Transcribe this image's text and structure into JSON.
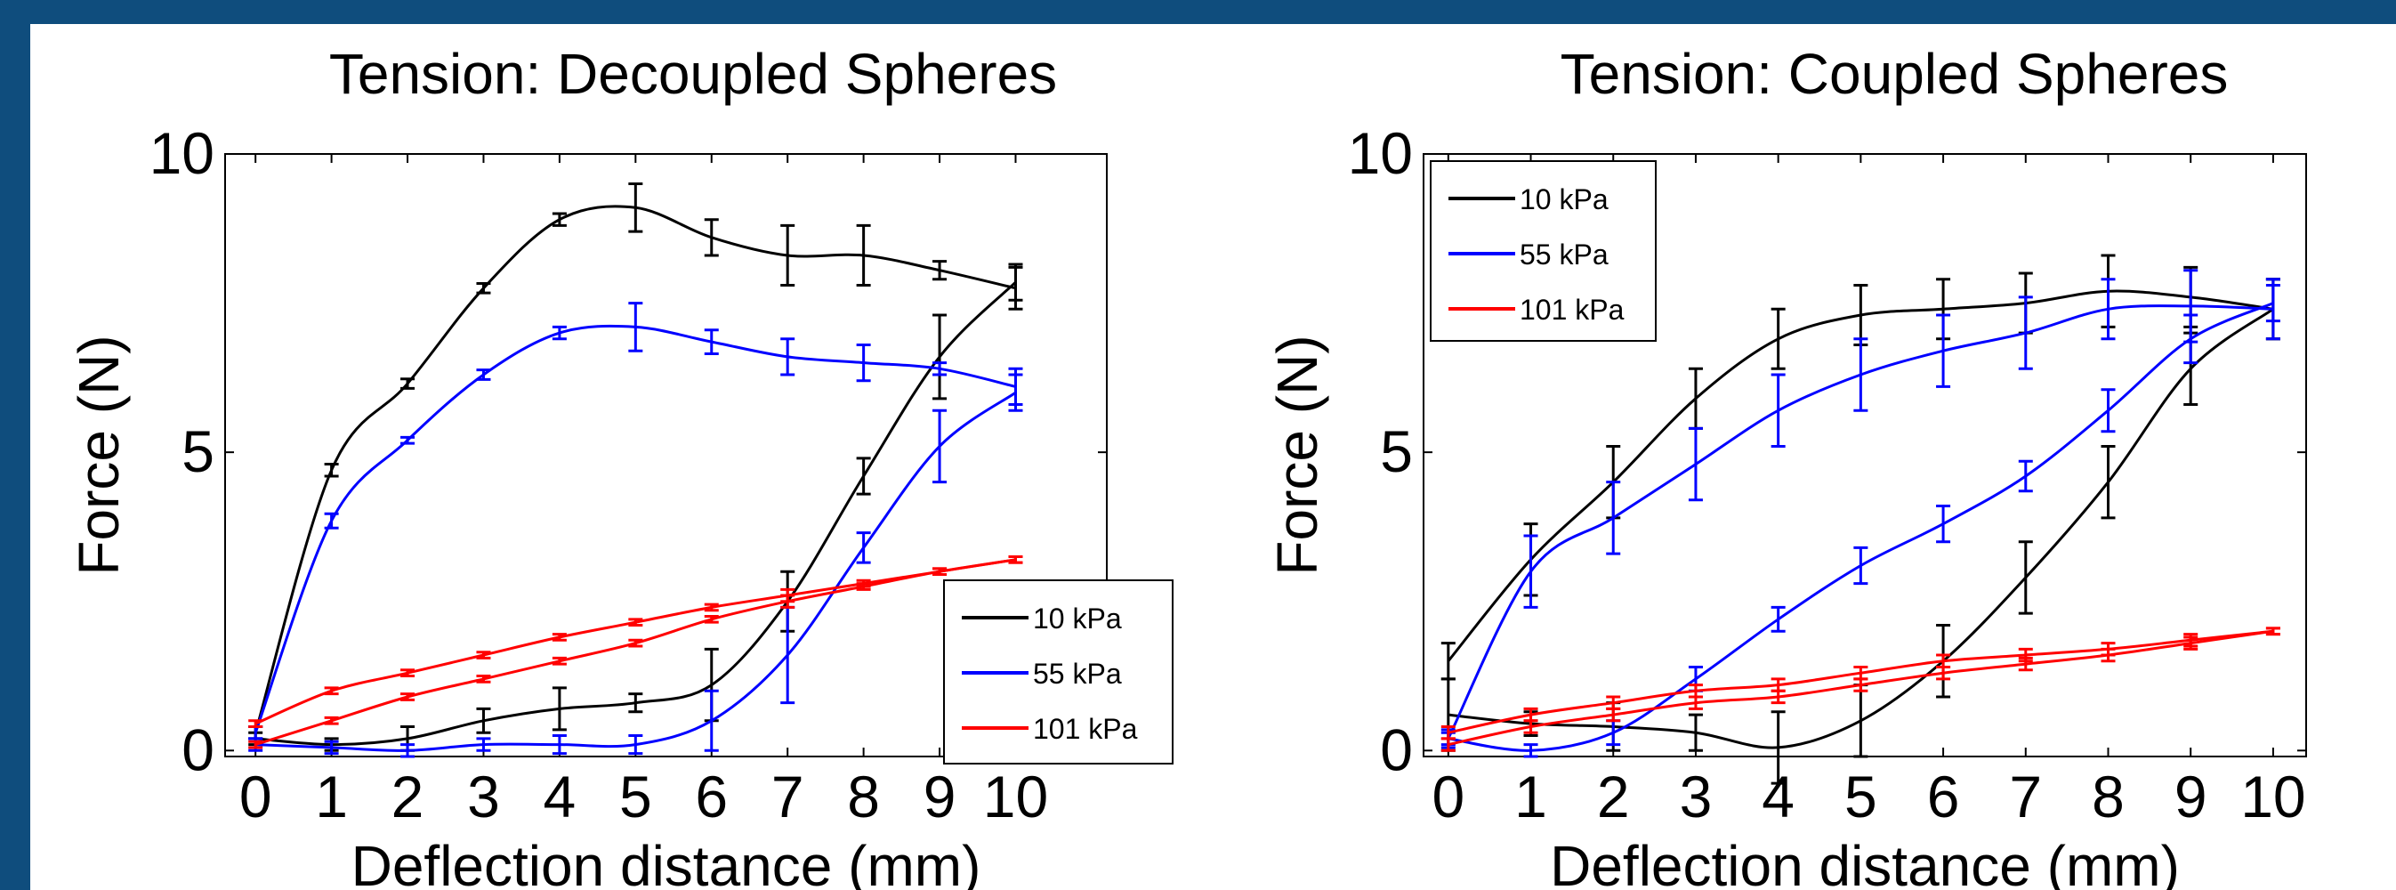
{
  "chart_data": [
    {
      "type": "line",
      "title": "Tension: Decoupled Spheres",
      "xlabel": "Deflection distance (mm)",
      "ylabel": "Force (N)",
      "xlim": [
        -0.4,
        11.2
      ],
      "ylim": [
        -0.1,
        10
      ],
      "xticks": [
        0,
        1,
        2,
        3,
        4,
        5,
        6,
        7,
        8,
        9,
        10
      ],
      "yticks": [
        0,
        5,
        10
      ],
      "legend_position": "bottom-right",
      "series": [
        {
          "name": "10 kPa",
          "color": "#000000",
          "loading": {
            "x": [
              0,
              1,
              2,
              3,
              4,
              5,
              6,
              7,
              8,
              9,
              10
            ],
            "y": [
              0.3,
              4.7,
              6.15,
              7.75,
              8.9,
              9.1,
              8.6,
              8.3,
              8.3,
              8.05,
              7.75
            ],
            "err": [
              0.1,
              0.1,
              0.08,
              0.08,
              0.1,
              0.4,
              0.3,
              0.5,
              0.5,
              0.15,
              0.35
            ]
          },
          "unloading": {
            "x": [
              0,
              1,
              2,
              3,
              4,
              5,
              6,
              7,
              8,
              9,
              10
            ],
            "y": [
              0.2,
              0.1,
              0.2,
              0.5,
              0.7,
              0.8,
              1.1,
              2.5,
              4.6,
              6.6,
              7.85
            ],
            "err": [
              0.1,
              0.1,
              0.2,
              0.2,
              0.35,
              0.15,
              0.6,
              0.5,
              0.3,
              0.7,
              0.3
            ]
          }
        },
        {
          "name": "55 kPa",
          "color": "#0000ff",
          "loading": {
            "x": [
              0,
              1,
              2,
              3,
              4,
              5,
              6,
              7,
              8,
              9,
              10
            ],
            "y": [
              0.3,
              3.85,
              5.2,
              6.3,
              7.0,
              7.1,
              6.85,
              6.6,
              6.5,
              6.4,
              6.1
            ],
            "err": [
              0.1,
              0.12,
              0.05,
              0.08,
              0.1,
              0.4,
              0.2,
              0.3,
              0.3,
              0.1,
              0.3
            ]
          },
          "unloading": {
            "x": [
              0,
              1,
              2,
              3,
              4,
              5,
              6,
              7,
              8,
              9,
              10
            ],
            "y": [
              0.1,
              0.05,
              0.0,
              0.1,
              0.1,
              0.1,
              0.5,
              1.6,
              3.4,
              5.1,
              6.0
            ],
            "err": [
              0.1,
              0.1,
              0.1,
              0.1,
              0.15,
              0.15,
              0.5,
              0.8,
              0.25,
              0.6,
              0.3
            ]
          }
        },
        {
          "name": "101 kPa",
          "color": "#ff0000",
          "loading": {
            "x": [
              0,
              1,
              2,
              3,
              4,
              5,
              6,
              7,
              8,
              9,
              10
            ],
            "y": [
              0.45,
              1.0,
              1.3,
              1.6,
              1.9,
              2.15,
              2.4,
              2.6,
              2.8,
              3.0,
              3.2
            ],
            "err": [
              0.05,
              0.05,
              0.05,
              0.05,
              0.05,
              0.05,
              0.05,
              0.1,
              0.05,
              0.05,
              0.05
            ]
          },
          "unloading": {
            "x": [
              0,
              1,
              2,
              3,
              4,
              5,
              6,
              7,
              8,
              9,
              10
            ],
            "y": [
              0.1,
              0.5,
              0.9,
              1.2,
              1.5,
              1.8,
              2.2,
              2.5,
              2.75,
              3.0,
              3.2
            ],
            "err": [
              0.05,
              0.05,
              0.05,
              0.05,
              0.05,
              0.05,
              0.05,
              0.1,
              0.05,
              0.05,
              0.05
            ]
          }
        }
      ]
    },
    {
      "type": "line",
      "title": "Tension: Coupled Spheres",
      "xlabel": "Deflection distance (mm)",
      "ylabel": "Force (N)",
      "xlim": [
        -0.3,
        10.4
      ],
      "ylim": [
        -0.1,
        10
      ],
      "xticks": [
        0,
        1,
        2,
        3,
        4,
        5,
        6,
        7,
        8,
        9,
        10
      ],
      "yticks": [
        0,
        5,
        10
      ],
      "legend_position": "top-left",
      "series": [
        {
          "name": "10 kPa",
          "color": "#000000",
          "loading": {
            "x": [
              0,
              1,
              2,
              3,
              4,
              5,
              6,
              7,
              8,
              9,
              10
            ],
            "y": [
              1.5,
              3.2,
              4.5,
              5.9,
              6.9,
              7.3,
              7.4,
              7.5,
              7.7,
              7.6,
              7.4
            ],
            "err": [
              0.3,
              0.6,
              0.6,
              0.5,
              0.5,
              0.5,
              0.5,
              0.5,
              0.6,
              0.5,
              0.5
            ]
          },
          "unloading": {
            "x": [
              0,
              1,
              2,
              3,
              4,
              5,
              6,
              7,
              8,
              9,
              10
            ],
            "y": [
              0.6,
              0.45,
              0.4,
              0.3,
              0.05,
              0.5,
              1.5,
              2.9,
              4.5,
              6.4,
              7.4
            ],
            "err": [
              0.6,
              0.2,
              0.4,
              0.3,
              0.6,
              0.6,
              0.6,
              0.6,
              0.6,
              0.6,
              0.5
            ]
          }
        },
        {
          "name": "55 kPa",
          "color": "#0000ff",
          "loading": {
            "x": [
              0,
              1,
              2,
              3,
              4,
              5,
              6,
              7,
              8,
              9,
              10
            ],
            "y": [
              0.2,
              3.0,
              3.9,
              4.8,
              5.7,
              6.3,
              6.7,
              7.0,
              7.4,
              7.45,
              7.4
            ],
            "err": [
              0.1,
              0.6,
              0.6,
              0.6,
              0.6,
              0.6,
              0.6,
              0.6,
              0.5,
              0.6,
              0.5
            ]
          },
          "unloading": {
            "x": [
              0,
              1,
              2,
              3,
              4,
              5,
              6,
              7,
              8,
              9,
              10
            ],
            "y": [
              0.2,
              0.0,
              0.3,
              1.2,
              2.2,
              3.1,
              3.8,
              4.6,
              5.7,
              6.9,
              7.5
            ],
            "err": [
              0.15,
              0.1,
              0.2,
              0.2,
              0.2,
              0.3,
              0.3,
              0.25,
              0.35,
              0.4,
              0.3
            ]
          }
        },
        {
          "name": "101 kPa",
          "color": "#ff0000",
          "loading": {
            "x": [
              0,
              1,
              2,
              3,
              4,
              5,
              6,
              7,
              8,
              9,
              10
            ],
            "y": [
              0.3,
              0.6,
              0.8,
              1.0,
              1.1,
              1.3,
              1.5,
              1.6,
              1.7,
              1.85,
              2.0
            ],
            "err": [
              0.1,
              0.1,
              0.1,
              0.1,
              0.1,
              0.1,
              0.1,
              0.1,
              0.1,
              0.1,
              0.05
            ]
          },
          "unloading": {
            "x": [
              0,
              1,
              2,
              3,
              4,
              5,
              6,
              7,
              8,
              9,
              10
            ],
            "y": [
              0.1,
              0.4,
              0.6,
              0.8,
              0.9,
              1.1,
              1.3,
              1.45,
              1.6,
              1.8,
              2.0
            ],
            "err": [
              0.1,
              0.1,
              0.1,
              0.1,
              0.1,
              0.1,
              0.1,
              0.1,
              0.1,
              0.1,
              0.05
            ]
          }
        }
      ]
    }
  ]
}
